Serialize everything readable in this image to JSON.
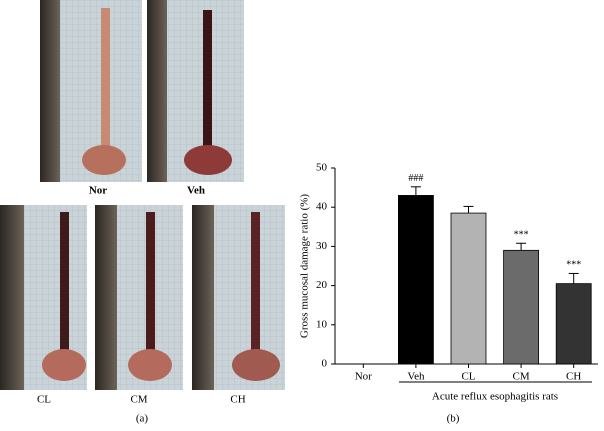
{
  "photos": {
    "panels": [
      {
        "label": "Nor"
      },
      {
        "label": "Veh"
      },
      {
        "label": "CL"
      },
      {
        "label": "CM"
      },
      {
        "label": "CH"
      }
    ],
    "panel_label": "(a)"
  },
  "chart_data": {
    "type": "bar",
    "panel_label": "(b)",
    "y_label": "Gross mucosal damage ratio (%)",
    "x_label": "Acute reflux esophagitis rats",
    "categories": [
      "Nor",
      "Veh",
      "CL",
      "CM",
      "CH"
    ],
    "series": [
      {
        "values": [
          0,
          43,
          38.5,
          29,
          20.5
        ],
        "errors": [
          0,
          2.2,
          1.7,
          1.8,
          2.6
        ],
        "colors": [
          "#000000",
          "#000000",
          "#b3b3b3",
          "#6b6b6b",
          "#333333"
        ]
      }
    ],
    "annotations": [
      {
        "category": "Veh",
        "text": "###"
      },
      {
        "category": "CM",
        "text": "***"
      },
      {
        "category": "CH",
        "text": "***"
      }
    ],
    "ylim": [
      0,
      50
    ],
    "yticks": [
      0,
      10,
      20,
      30,
      40,
      50
    ]
  }
}
